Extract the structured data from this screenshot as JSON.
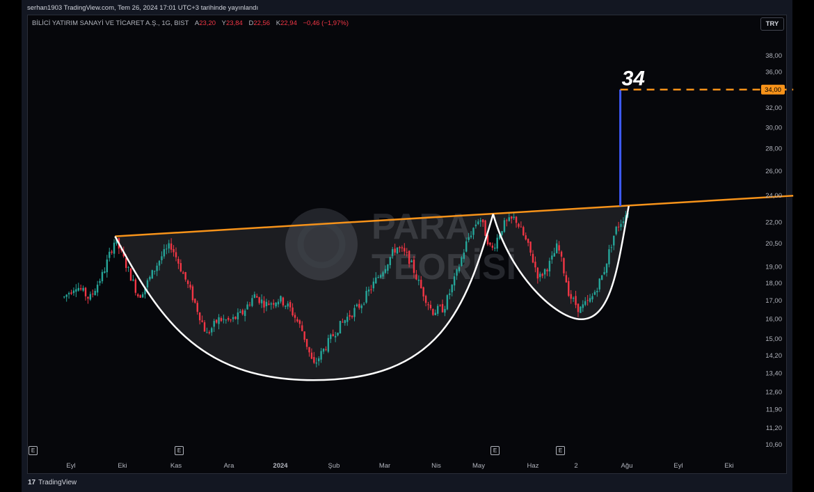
{
  "header": {
    "publish_line": "serhan1903 TradingView.com, Tem 26, 2024 17:01 UTC+3 tarihinde yayınlandı"
  },
  "legend": {
    "symbol": "BİLİCİ YATIRIM SANAYİ VE TİCARET A.Ş., 1G, BIST",
    "open_label": "A",
    "open": "23,20",
    "high_label": "Y",
    "high": "23,84",
    "low_label": "D",
    "low": "22,56",
    "close_label": "K",
    "close": "22,94",
    "change": "−0,46 (−1,97%)"
  },
  "currency_button": "TRY",
  "watermark": {
    "line1": "PARA",
    "line2": "TEORİSİ"
  },
  "target_label": "34",
  "price_marker": "34,00",
  "earnings_badge": "E",
  "footer": {
    "logo_mark": "17",
    "brand": "TradingView"
  },
  "colors": {
    "up": "#26a69a",
    "down": "#f23645",
    "resistance": "#f7931a",
    "target": "#3d5afe",
    "pattern": "#ffffff"
  },
  "chart_data": {
    "type": "candlestick",
    "title": "",
    "y_scale": "log",
    "ylim": [
      10.3,
      40.0
    ],
    "y_ticks": [
      "38,00",
      "36,00",
      "32,00",
      "30,00",
      "28,00",
      "26,00",
      "24,00",
      "22,00",
      "20,50",
      "19,00",
      "18,00",
      "17,00",
      "16,00",
      "15,00",
      "14,20",
      "13,40",
      "12,60",
      "11,90",
      "11,20",
      "10,60"
    ],
    "x_ticks": [
      "Eyl",
      "Eki",
      "Kas",
      "Ara",
      "2024",
      "Şub",
      "Mar",
      "Nis",
      "May",
      "Haz",
      "2",
      "Ağu",
      "Eyl",
      "Eki"
    ],
    "price_path": [
      [
        "2023-08-28",
        17.2
      ],
      [
        "2023-09-04",
        17.9
      ],
      [
        "2023-09-12",
        17.1
      ],
      [
        "2023-09-20",
        18.6
      ],
      [
        "2023-09-27",
        20.8
      ],
      [
        "2023-10-04",
        19.0
      ],
      [
        "2023-10-11",
        17.2
      ],
      [
        "2023-10-17",
        18.2
      ],
      [
        "2023-10-24",
        19.6
      ],
      [
        "2023-10-30",
        20.4
      ],
      [
        "2023-11-06",
        18.6
      ],
      [
        "2023-11-13",
        16.9
      ],
      [
        "2023-11-20",
        15.2
      ],
      [
        "2023-11-27",
        16.0
      ],
      [
        "2023-12-04",
        15.9
      ],
      [
        "2023-12-11",
        16.3
      ],
      [
        "2023-12-18",
        17.3
      ],
      [
        "2023-12-25",
        16.8
      ],
      [
        "2024-01-02",
        17.1
      ],
      [
        "2024-01-08",
        16.6
      ],
      [
        "2024-01-15",
        15.5
      ],
      [
        "2024-01-22",
        13.7
      ],
      [
        "2024-01-29",
        14.6
      ],
      [
        "2024-02-05",
        15.5
      ],
      [
        "2024-02-12",
        16.2
      ],
      [
        "2024-02-19",
        16.8
      ],
      [
        "2024-02-26",
        17.9
      ],
      [
        "2024-03-04",
        19.0
      ],
      [
        "2024-03-11",
        20.3
      ],
      [
        "2024-03-18",
        19.6
      ],
      [
        "2024-03-25",
        17.8
      ],
      [
        "2024-04-01",
        16.4
      ],
      [
        "2024-04-08",
        16.6
      ],
      [
        "2024-04-15",
        18.4
      ],
      [
        "2024-04-22",
        20.8
      ],
      [
        "2024-04-29",
        22.4
      ],
      [
        "2024-05-06",
        20.0
      ],
      [
        "2024-05-13",
        21.8
      ],
      [
        "2024-05-20",
        22.3
      ],
      [
        "2024-05-27",
        20.5
      ],
      [
        "2024-06-03",
        18.3
      ],
      [
        "2024-06-10",
        19.3
      ],
      [
        "2024-06-14",
        20.4
      ],
      [
        "2024-06-21",
        17.3
      ],
      [
        "2024-06-27",
        16.5
      ],
      [
        "2024-07-04",
        17.1
      ],
      [
        "2024-07-11",
        18.6
      ],
      [
        "2024-07-18",
        21.4
      ],
      [
        "2024-07-26",
        22.94
      ]
    ],
    "pattern": "cup_and_handle",
    "cup": {
      "left_rim": [
        "2023-09-27",
        21.0
      ],
      "bottom": [
        "2024-01-22",
        13.1
      ],
      "right_rim": [
        "2024-05-07",
        22.6
      ]
    },
    "handle": {
      "start": [
        "2024-05-07",
        22.6
      ],
      "bottom": [
        "2024-06-28",
        16.0
      ],
      "end": [
        "2024-07-26",
        23.2
      ]
    },
    "resistance_line": {
      "start": [
        "2023-09-27",
        21.0
      ],
      "end": [
        "2024-10-31",
        24.0
      ]
    },
    "target": {
      "breakout": [
        "2024-07-21",
        23.2
      ],
      "price": 34.0,
      "extends_to": "2024-10-31"
    },
    "earnings_dates": [
      "2023-08-29",
      "2023-11-14",
      "2024-05-16",
      "2024-06-28"
    ]
  }
}
